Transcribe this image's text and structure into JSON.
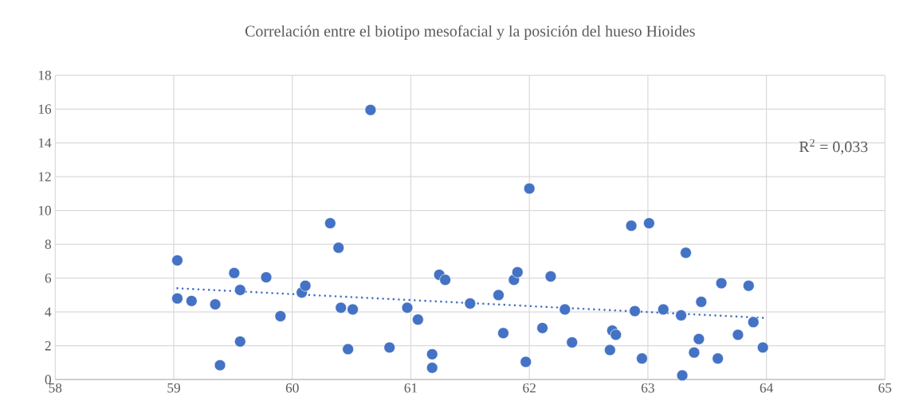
{
  "chart_data": {
    "type": "scatter",
    "title": "Correlación entre el biotipo mesofacial y la posición del hueso Hioides",
    "annotations": [
      "R$^{2}$ = 0,033"
    ],
    "xlim": [
      58,
      65
    ],
    "xticks": [
      58,
      59,
      60,
      61,
      62,
      63,
      64,
      65
    ],
    "ylim": [
      0,
      18
    ],
    "yticks": [
      0,
      2,
      4,
      6,
      8,
      10,
      12,
      14,
      16,
      18
    ],
    "grid": true,
    "marker": "circle",
    "series": [
      {
        "color": "#4472c4",
        "x": [
          59.03,
          59.03,
          59.15,
          59.35,
          59.39,
          59.51,
          59.56,
          59.56,
          59.78,
          59.9,
          60.08,
          60.11,
          60.32,
          60.39,
          60.41,
          60.47,
          60.51,
          60.66,
          60.82,
          60.97,
          61.06,
          61.18,
          61.18,
          61.24,
          61.29,
          61.5,
          61.74,
          61.78,
          61.87,
          61.9,
          61.97,
          62.0,
          62.11,
          62.18,
          62.3,
          62.36,
          62.68,
          62.7,
          62.73,
          62.86,
          62.89,
          62.95,
          63.01,
          63.13,
          63.28,
          63.29,
          63.32,
          63.39,
          63.43,
          63.45,
          63.62,
          63.59,
          63.76,
          63.85,
          63.89,
          63.97
        ],
        "values": [
          7.05,
          4.8,
          4.65,
          4.45,
          0.85,
          6.3,
          5.3,
          2.25,
          6.05,
          3.75,
          5.15,
          5.55,
          9.25,
          7.8,
          4.25,
          1.8,
          4.15,
          15.95,
          1.9,
          4.25,
          3.55,
          1.5,
          0.7,
          6.2,
          5.9,
          4.5,
          5.0,
          2.75,
          5.9,
          6.35,
          1.05,
          11.3,
          3.05,
          6.1,
          4.15,
          2.2,
          1.75,
          2.9,
          2.65,
          9.1,
          4.05,
          1.25,
          9.25,
          4.15,
          3.8,
          0.25,
          7.5,
          1.6,
          2.4,
          4.6,
          5.7,
          1.25,
          2.65,
          5.55,
          3.4,
          1.9
        ]
      },
      {
        "type": "line",
        "color": "#4472c4",
        "line_style": "dotted",
        "marker": "none",
        "x": [
          59.03,
          63.97
        ],
        "values": [
          5.4,
          3.65
        ]
      }
    ]
  }
}
